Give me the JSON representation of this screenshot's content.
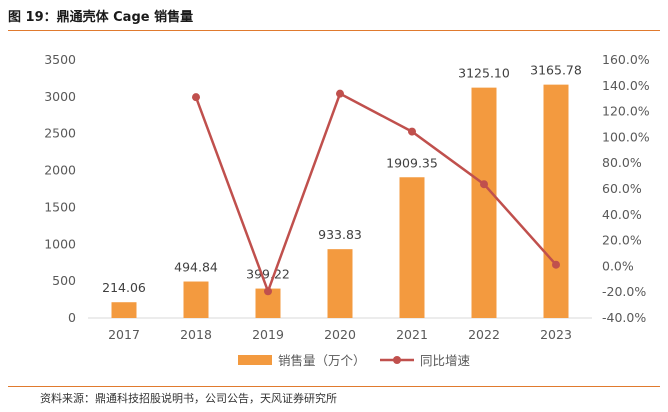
{
  "title": "图 19：鼎通壳体 Cage 销售量",
  "source": "资料来源：鼎通科技招股说明书，公司公告，天风证券研究所",
  "colors": {
    "bar": "#f39a3f",
    "line": "#c0504d",
    "rule": "#e07a2e"
  },
  "chart_data": {
    "type": "bar",
    "categories": [
      "2017",
      "2018",
      "2019",
      "2020",
      "2021",
      "2022",
      "2023"
    ],
    "series": [
      {
        "name": "销售量（万个）",
        "type": "bar",
        "axis": "left",
        "values": [
          214.06,
          494.84,
          399.22,
          933.83,
          1909.35,
          3125.1,
          3165.78
        ],
        "labels": [
          "214.06",
          "494.84",
          "399.22",
          "933.83",
          "1909.35",
          "3125.10",
          "3165.78"
        ]
      },
      {
        "name": "同比增速",
        "type": "line",
        "axis": "right",
        "values": [
          null,
          131.2,
          -19.3,
          133.9,
          104.5,
          63.7,
          1.3
        ]
      }
    ],
    "y_left": {
      "min": 0,
      "max": 3500,
      "step": 500,
      "ticks": [
        "0",
        "500",
        "1000",
        "1500",
        "2000",
        "2500",
        "3000",
        "3500"
      ]
    },
    "y_right": {
      "min": -40,
      "max": 160,
      "step": 20,
      "ticks": [
        "-40.0%",
        "-20.0%",
        "0.0%",
        "20.0%",
        "40.0%",
        "60.0%",
        "80.0%",
        "100.0%",
        "120.0%",
        "140.0%",
        "160.0%"
      ]
    },
    "grid": false,
    "legend_position": "bottom"
  }
}
